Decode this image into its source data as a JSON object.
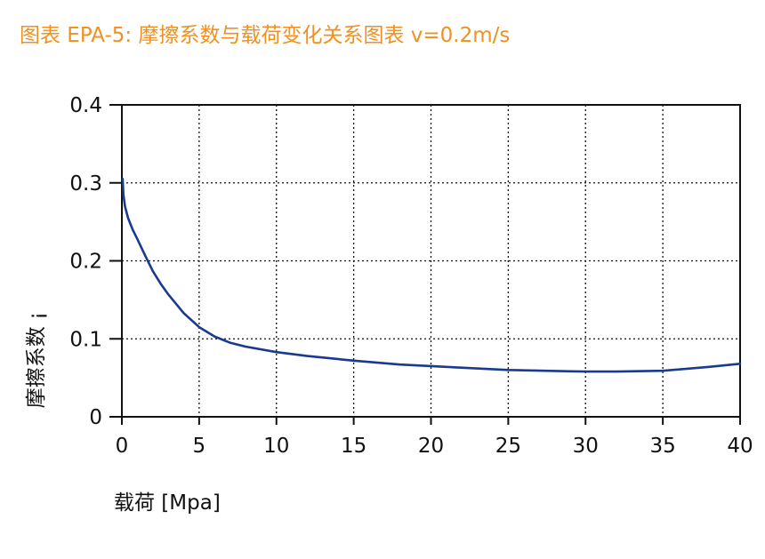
{
  "chart_data": {
    "type": "line",
    "title": "图表 EPA-5: 摩擦系数与载荷变化关系图表 v=0.2m/s",
    "xlabel": "载荷 [Mpa]",
    "ylabel": "摩擦系数 ¡",
    "xlim": [
      0,
      40
    ],
    "ylim": [
      0,
      0.4
    ],
    "x_ticks": [
      0,
      5,
      10,
      15,
      20,
      25,
      30,
      35,
      40
    ],
    "x_tick_labels": [
      "0",
      "5",
      "10",
      "15",
      "20",
      "25",
      "30",
      "35",
      "40"
    ],
    "y_ticks": [
      0,
      0.1,
      0.2,
      0.3,
      0.4
    ],
    "y_tick_labels": [
      "0",
      "0.1",
      "0.2",
      "0.3",
      "0.4"
    ],
    "grid": true,
    "series": [
      {
        "color": "#1a3a8f",
        "x": [
          0.05,
          0.1,
          0.2,
          0.4,
          0.7,
          1,
          1.5,
          2,
          2.5,
          3,
          4,
          5,
          6,
          7,
          8,
          10,
          12,
          15,
          18,
          20,
          25,
          30,
          32,
          35,
          38,
          40
        ],
        "y": [
          0.305,
          0.285,
          0.27,
          0.255,
          0.24,
          0.228,
          0.207,
          0.187,
          0.171,
          0.157,
          0.133,
          0.115,
          0.103,
          0.095,
          0.09,
          0.083,
          0.078,
          0.072,
          0.067,
          0.065,
          0.06,
          0.058,
          0.058,
          0.059,
          0.064,
          0.068
        ]
      }
    ]
  }
}
